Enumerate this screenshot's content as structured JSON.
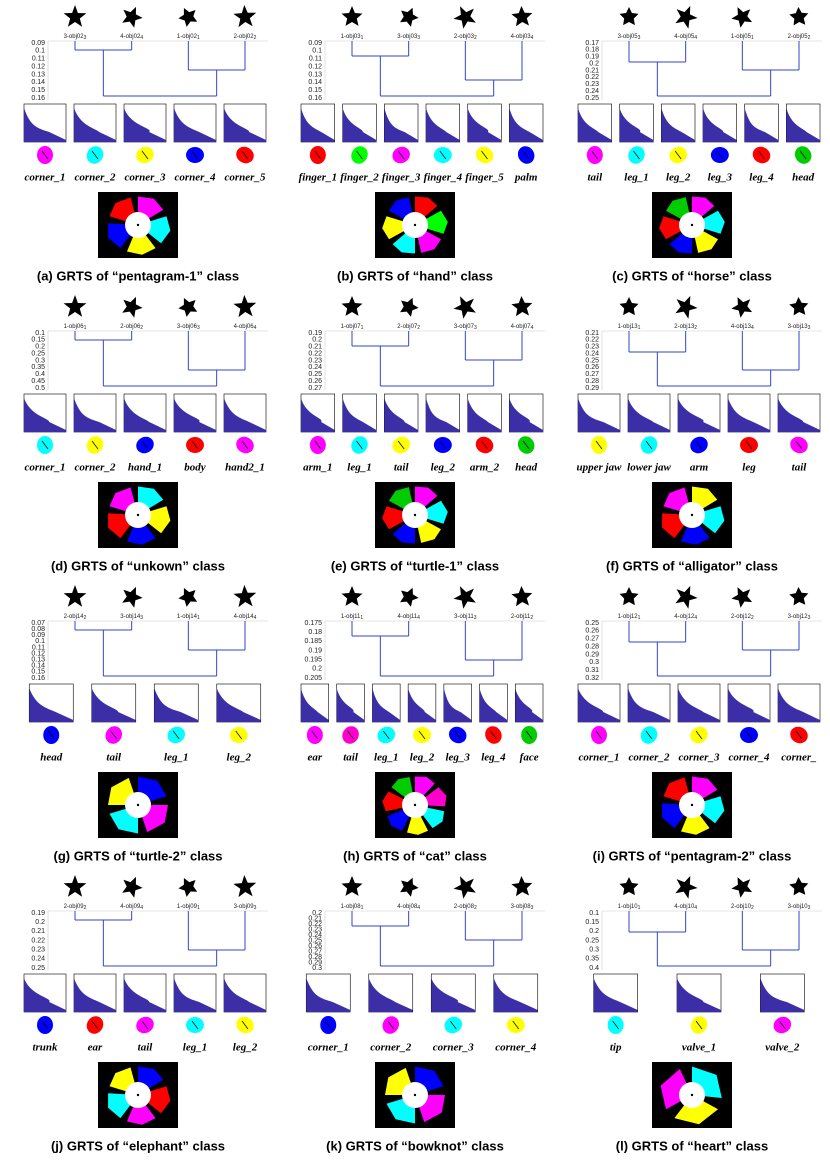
{
  "panels": [
    {
      "caption": "(a) GRTS of “pentagram-1” class",
      "objects": [
        {
          "name": "3-obj02",
          "sub": "3"
        },
        {
          "name": "4-obj02",
          "sub": "4"
        },
        {
          "name": "1-obj02",
          "sub": "1"
        },
        {
          "name": "2-obj02",
          "sub": "2"
        }
      ],
      "yticks": [
        "0.09",
        "0.1",
        "0.11",
        "0.12",
        "0.13",
        "0.14",
        "0.15",
        "0.16"
      ],
      "parts": [
        {
          "name": "corner_1",
          "color": "#ff00ff"
        },
        {
          "name": "corner_2",
          "color": "#00ffff"
        },
        {
          "name": "corner_3",
          "color": "#ffff00"
        },
        {
          "name": "corner_4",
          "color": "#0000ff"
        },
        {
          "name": "corner_5",
          "color": "#ff0000"
        }
      ]
    },
    {
      "caption": "(b) GRTS of “hand” class",
      "objects": [
        {
          "name": "1-obj03",
          "sub": "1"
        },
        {
          "name": "3-obj03",
          "sub": "3"
        },
        {
          "name": "2-obj03",
          "sub": "2"
        },
        {
          "name": "4-obj03",
          "sub": "4"
        }
      ],
      "yticks": [
        "0.09",
        "0.1",
        "0.11",
        "0.12",
        "0.13",
        "0.14",
        "0.15",
        "0.16"
      ],
      "parts": [
        {
          "name": "finger_1",
          "color": "#ff0000"
        },
        {
          "name": "finger_2",
          "color": "#00ff00"
        },
        {
          "name": "finger_3",
          "color": "#ff00ff"
        },
        {
          "name": "finger_4",
          "color": "#00ffff"
        },
        {
          "name": "finger_5",
          "color": "#ffff00"
        },
        {
          "name": "palm",
          "color": "#0000ff"
        }
      ]
    },
    {
      "caption": "(c) GRTS of “horse” class",
      "objects": [
        {
          "name": "3-obj05",
          "sub": "3"
        },
        {
          "name": "4-obj05",
          "sub": "4"
        },
        {
          "name": "1-obj05",
          "sub": "1"
        },
        {
          "name": "2-obj05",
          "sub": "2"
        }
      ],
      "yticks": [
        "0.17",
        "0.18",
        "0.19",
        "0.2",
        "0.21",
        "0.22",
        "0.23",
        "0.24",
        "0.25"
      ],
      "parts": [
        {
          "name": "tail",
          "color": "#ff00ff"
        },
        {
          "name": "leg_1",
          "color": "#00ffff"
        },
        {
          "name": "leg_2",
          "color": "#ffff00"
        },
        {
          "name": "leg_3",
          "color": "#0000ff"
        },
        {
          "name": "leg_4",
          "color": "#ff0000"
        },
        {
          "name": "head",
          "color": "#00cc00"
        }
      ]
    },
    {
      "caption": "(d) GRTS of “unkown” class",
      "objects": [
        {
          "name": "1-obj06",
          "sub": "1"
        },
        {
          "name": "2-obj06",
          "sub": "2"
        },
        {
          "name": "3-obj06",
          "sub": "3"
        },
        {
          "name": "4-obj06",
          "sub": "4"
        }
      ],
      "yticks": [
        "0.1",
        "0.15",
        "0.2",
        "0.25",
        "0.3",
        "0.35",
        "0.4",
        "0.45",
        "0.5"
      ],
      "parts": [
        {
          "name": "corner_1",
          "color": "#00ffff"
        },
        {
          "name": "corner_2",
          "color": "#ffff00"
        },
        {
          "name": "hand_1",
          "color": "#0000ff"
        },
        {
          "name": "body",
          "color": "#ff0000"
        },
        {
          "name": "hand2_1",
          "color": "#ff00ff"
        }
      ]
    },
    {
      "caption": "(e) GRTS of “turtle-1” class",
      "objects": [
        {
          "name": "1-obj07",
          "sub": "1"
        },
        {
          "name": "2-obj07",
          "sub": "2"
        },
        {
          "name": "3-obj07",
          "sub": "3"
        },
        {
          "name": "4-obj07",
          "sub": "4"
        }
      ],
      "yticks": [
        "0.19",
        "0.2",
        "0.21",
        "0.22",
        "0.23",
        "0.24",
        "0.25",
        "0.26",
        "0.27"
      ],
      "parts": [
        {
          "name": "arm_1",
          "color": "#ff00ff"
        },
        {
          "name": "leg_1",
          "color": "#00ffff"
        },
        {
          "name": "tail",
          "color": "#ffff00"
        },
        {
          "name": "leg_2",
          "color": "#0000ff"
        },
        {
          "name": "arm_2",
          "color": "#ff0000"
        },
        {
          "name": "head",
          "color": "#00cc00"
        }
      ]
    },
    {
      "caption": "(f) GRTS of “alligator” class",
      "objects": [
        {
          "name": "1-obj13",
          "sub": "1"
        },
        {
          "name": "2-obj13",
          "sub": "2"
        },
        {
          "name": "4-obj13",
          "sub": "4"
        },
        {
          "name": "3-obj13",
          "sub": "3"
        }
      ],
      "yticks": [
        "0.21",
        "0.22",
        "0.23",
        "0.24",
        "0.25",
        "0.26",
        "0.27",
        "0.28",
        "0.29"
      ],
      "parts": [
        {
          "name": "upper jaw",
          "color": "#ffff00"
        },
        {
          "name": "lower jaw",
          "color": "#00ffff"
        },
        {
          "name": "arm",
          "color": "#0000ff"
        },
        {
          "name": "leg",
          "color": "#ff0000"
        },
        {
          "name": "tail",
          "color": "#ff00ff"
        }
      ]
    },
    {
      "caption": "(g) GRTS of “turtle-2” class",
      "objects": [
        {
          "name": "2-obj14",
          "sub": "2"
        },
        {
          "name": "3-obj14",
          "sub": "3"
        },
        {
          "name": "1-obj14",
          "sub": "1"
        },
        {
          "name": "4-obj14",
          "sub": "4"
        }
      ],
      "yticks": [
        "0.07",
        "0.08",
        "0.09",
        "0.1",
        "0.11",
        "0.12",
        "0.13",
        "0.14",
        "0.15",
        "0.16"
      ],
      "parts": [
        {
          "name": "head",
          "color": "#0000ff"
        },
        {
          "name": "tail",
          "color": "#ff00ff"
        },
        {
          "name": "leg_1",
          "color": "#00ffff"
        },
        {
          "name": "leg_2",
          "color": "#ffff00"
        }
      ]
    },
    {
      "caption": "(h) GRTS of “cat” class",
      "objects": [
        {
          "name": "1-obj11",
          "sub": "1"
        },
        {
          "name": "4-obj11",
          "sub": "4"
        },
        {
          "name": "3-obj11",
          "sub": "3"
        },
        {
          "name": "2-obj11",
          "sub": "2"
        }
      ],
      "yticks": [
        "0.175",
        "0.18",
        "0.185",
        "0.19",
        "0.195",
        "0.2",
        "0.205"
      ],
      "parts": [
        {
          "name": "ear",
          "color": "#ff00ff"
        },
        {
          "name": "tail",
          "color": "#ff00cc"
        },
        {
          "name": "leg_1",
          "color": "#00ffff"
        },
        {
          "name": "leg_2",
          "color": "#ffff00"
        },
        {
          "name": "leg_3",
          "color": "#0000ff"
        },
        {
          "name": "leg_4",
          "color": "#ff0000"
        },
        {
          "name": "face",
          "color": "#00cc00"
        }
      ]
    },
    {
      "caption": "(i) GRTS of “pentagram-2” class",
      "objects": [
        {
          "name": "1-obj12",
          "sub": "1"
        },
        {
          "name": "4-obj12",
          "sub": "4"
        },
        {
          "name": "2-obj12",
          "sub": "2"
        },
        {
          "name": "3-obj12",
          "sub": "3"
        }
      ],
      "yticks": [
        "0.25",
        "0.26",
        "0.27",
        "0.28",
        "0.29",
        "0.3",
        "0.31",
        "0.32"
      ],
      "parts": [
        {
          "name": "corner_1",
          "color": "#ff00ff"
        },
        {
          "name": "corner_2",
          "color": "#00ffff"
        },
        {
          "name": "corner_3",
          "color": "#ffff00"
        },
        {
          "name": "corner_4",
          "color": "#0000ff"
        },
        {
          "name": "corner_",
          "color": "#ff0000"
        }
      ]
    },
    {
      "caption": "(j) GRTS of “elephant” class",
      "objects": [
        {
          "name": "2-obj09",
          "sub": "2"
        },
        {
          "name": "4-obj09",
          "sub": "4"
        },
        {
          "name": "1-obj09",
          "sub": "1"
        },
        {
          "name": "3-obj09",
          "sub": "3"
        }
      ],
      "yticks": [
        "0.19",
        "0.2",
        "0.21",
        "0.22",
        "0.23",
        "0.24",
        "0.25"
      ],
      "parts": [
        {
          "name": "trunk",
          "color": "#0000ff"
        },
        {
          "name": "ear",
          "color": "#ff0000"
        },
        {
          "name": "tail",
          "color": "#ff00ff"
        },
        {
          "name": "leg_1",
          "color": "#00ffff"
        },
        {
          "name": "leg_2",
          "color": "#ffff00"
        }
      ]
    },
    {
      "caption": "(k) GRTS of “bowknot” class",
      "objects": [
        {
          "name": "1-obj08",
          "sub": "1"
        },
        {
          "name": "4-obj08",
          "sub": "4"
        },
        {
          "name": "2-obj08",
          "sub": "2"
        },
        {
          "name": "3-obj08",
          "sub": "3"
        }
      ],
      "yticks": [
        "0.2",
        "0.21",
        "0.22",
        "0.23",
        "0.24",
        "0.25",
        "0.26",
        "0.27",
        "0.28",
        "0.29",
        "0.3"
      ],
      "parts": [
        {
          "name": "corner_1",
          "color": "#0000ff"
        },
        {
          "name": "corner_2",
          "color": "#ff00ff"
        },
        {
          "name": "corner_3",
          "color": "#00ffff"
        },
        {
          "name": "corner_4",
          "color": "#ffff00"
        }
      ]
    },
    {
      "caption": "(l) GRTS of “heart” class",
      "objects": [
        {
          "name": "1-obj10",
          "sub": "1"
        },
        {
          "name": "4-obj10",
          "sub": "4"
        },
        {
          "name": "2-obj10",
          "sub": "2"
        },
        {
          "name": "3-obj10",
          "sub": "3"
        }
      ],
      "yticks": [
        "0.1",
        "0.15",
        "0.2",
        "0.25",
        "0.3",
        "0.35",
        "0.4"
      ],
      "parts": [
        {
          "name": "tip",
          "color": "#00ffff"
        },
        {
          "name": "valve_1",
          "color": "#ffff00"
        },
        {
          "name": "valve_2",
          "color": "#ff00ff"
        }
      ]
    }
  ]
}
